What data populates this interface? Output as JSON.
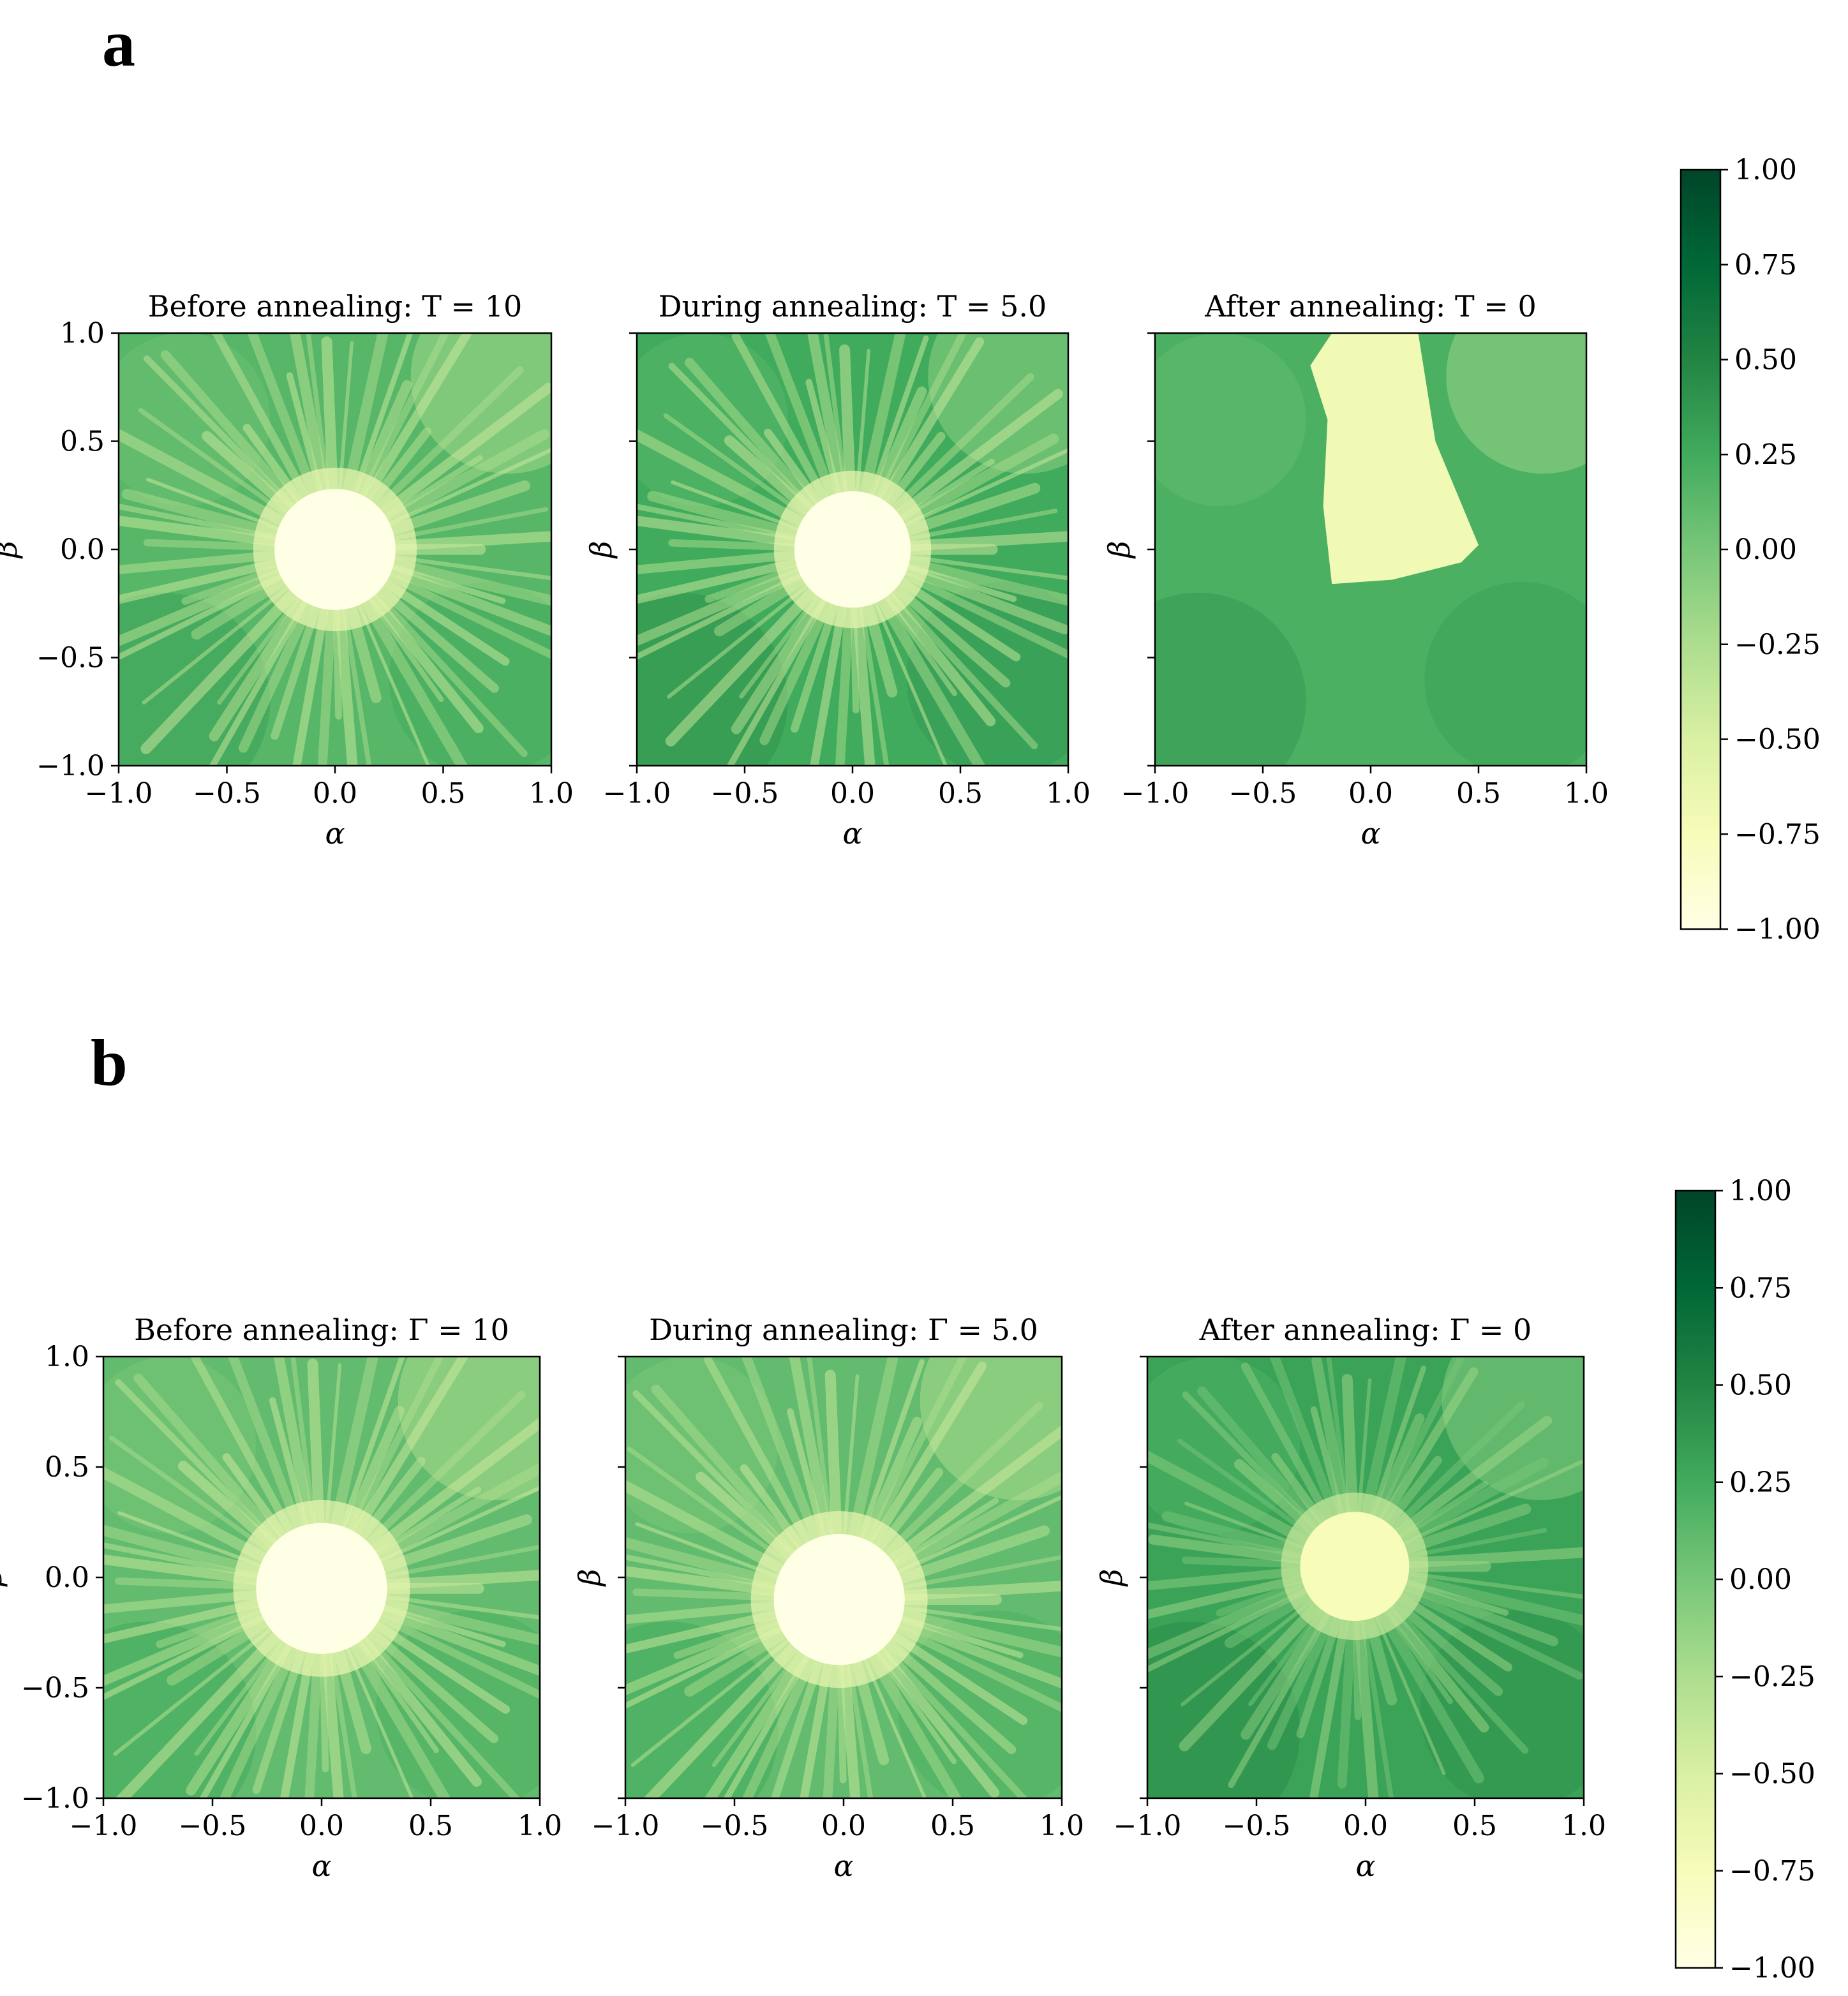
{
  "figure": {
    "colormap": [
      "#ffffe5",
      "#f7fcb9",
      "#d9f0a3",
      "#addd8e",
      "#78c679",
      "#41ab5d",
      "#238443",
      "#006837",
      "#004529"
    ],
    "panels": [
      {
        "letter": "a",
        "colorbar": {
          "min": -1.0,
          "max": 1.0,
          "tick_labels": [
            "1.00",
            "0.75",
            "0.50",
            "0.25",
            "0.00",
            "−0.25",
            "−0.50",
            "−0.75",
            "−1.00"
          ]
        }
      },
      {
        "letter": "b",
        "colorbar": {
          "min": -1.0,
          "max": 1.0,
          "tick_labels": [
            "1.00",
            "0.75",
            "0.50",
            "0.25",
            "0.00",
            "−0.25",
            "−0.50",
            "−0.75",
            "−1.00"
          ]
        }
      }
    ]
  },
  "chart_data": [
    {
      "type": "heatmap",
      "panel": "a",
      "title": "Before annealing: T = 10",
      "xlabel": "α",
      "ylabel": "β",
      "xlim": [
        -1.0,
        1.0
      ],
      "ylim": [
        -1.0,
        1.0
      ],
      "x_ticks": [
        "−1.0",
        "−0.5",
        "0.0",
        "0.5",
        "1.0"
      ],
      "y_ticks": [
        "−1.0",
        "−0.5",
        "0.0",
        "0.5",
        "1.0"
      ],
      "value_range": [
        -1.0,
        1.0
      ],
      "features": {
        "background_value": 0.15,
        "center_value": -1.0,
        "center_x": 0.0,
        "center_y": 0.0,
        "center_radius": 0.28,
        "streaks": "dense radial light streaks"
      }
    },
    {
      "type": "heatmap",
      "panel": "a",
      "title": "During annealing: T = 5.0",
      "xlabel": "α",
      "ylabel": "β",
      "xlim": [
        -1.0,
        1.0
      ],
      "ylim": [
        -1.0,
        1.0
      ],
      "x_ticks": [
        "−1.0",
        "−0.5",
        "0.0",
        "0.5",
        "1.0"
      ],
      "y_ticks": [],
      "value_range": [
        -1.0,
        1.0
      ],
      "features": {
        "background_value": 0.25,
        "center_value": -1.0,
        "center_x": 0.0,
        "center_y": 0.0,
        "center_radius": 0.27,
        "streaks": "radial light streaks"
      }
    },
    {
      "type": "heatmap",
      "panel": "a",
      "title": "After annealing: T = 0",
      "xlabel": "α",
      "ylabel": "β",
      "xlim": [
        -1.0,
        1.0
      ],
      "ylim": [
        -1.0,
        1.0
      ],
      "x_ticks": [
        "−1.0",
        "−0.5",
        "0.0",
        "0.5",
        "1.0"
      ],
      "y_ticks": [],
      "value_range": [
        -1.0,
        1.0
      ],
      "features": {
        "background_value": 0.2,
        "region_value": -0.7,
        "region": "tear-shaped region from alpha −0.2 to 0.5, beta −0.2 to 1.0"
      }
    },
    {
      "type": "heatmap",
      "panel": "b",
      "title": "Before annealing: Γ = 10",
      "xlabel": "α",
      "ylabel": "β",
      "xlim": [
        -1.0,
        1.0
      ],
      "ylim": [
        -1.0,
        1.0
      ],
      "x_ticks": [
        "−1.0",
        "−0.5",
        "0.0",
        "0.5",
        "1.0"
      ],
      "y_ticks": [
        "−1.0",
        "−0.5",
        "0.0",
        "0.5",
        "1.0"
      ],
      "value_range": [
        -1.0,
        1.0
      ],
      "features": {
        "background_value": 0.1,
        "center_value": -1.0,
        "center_x": 0.0,
        "center_y": -0.05,
        "center_radius": 0.3,
        "streaks": "dense radial light streaks"
      }
    },
    {
      "type": "heatmap",
      "panel": "b",
      "title": "During annealing: Γ = 5.0",
      "xlabel": "α",
      "ylabel": "β",
      "xlim": [
        -1.0,
        1.0
      ],
      "ylim": [
        -1.0,
        1.0
      ],
      "x_ticks": [
        "−1.0",
        "−0.5",
        "0.0",
        "0.5",
        "1.0"
      ],
      "y_ticks": [],
      "value_range": [
        -1.0,
        1.0
      ],
      "features": {
        "background_value": 0.1,
        "center_value": -1.0,
        "center_x": -0.02,
        "center_y": -0.1,
        "center_radius": 0.3,
        "streaks": "light upper-right region"
      }
    },
    {
      "type": "heatmap",
      "panel": "b",
      "title": "After annealing: Γ = 0",
      "xlabel": "α",
      "ylabel": "β",
      "xlim": [
        -1.0,
        1.0
      ],
      "ylim": [
        -1.0,
        1.0
      ],
      "x_ticks": [
        "−1.0",
        "−0.5",
        "0.0",
        "0.5",
        "1.0"
      ],
      "y_ticks": [],
      "value_range": [
        -1.0,
        1.0
      ],
      "features": {
        "background_value": 0.3,
        "center_value": -0.75,
        "center_x": -0.05,
        "center_y": 0.05,
        "center_radius": 0.25,
        "streaks": "light upper-right corner"
      }
    }
  ]
}
